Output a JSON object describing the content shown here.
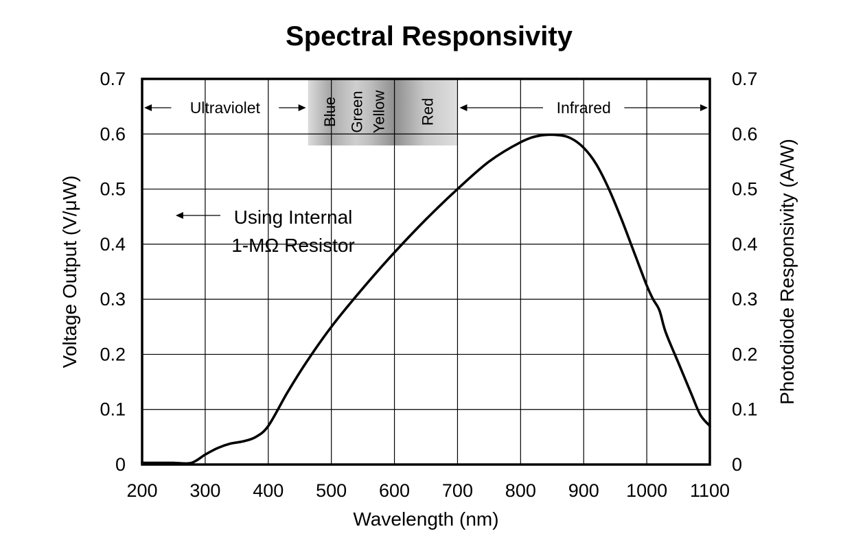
{
  "chart_data": {
    "type": "line",
    "title": "Spectral Responsivity",
    "xlabel": "Wavelength (nm)",
    "ylabel": "Voltage Output (V/μW)",
    "y2label": "Photodiode Responsivity (A/W)",
    "xlim": [
      200,
      1100
    ],
    "ylim": [
      0,
      0.7
    ],
    "y2lim": [
      0,
      0.7
    ],
    "grid": true,
    "x_ticks": [
      "200",
      "300",
      "400",
      "500",
      "600",
      "700",
      "800",
      "900",
      "1000",
      "1100"
    ],
    "y_ticks": [
      "0",
      "0.1",
      "0.2",
      "0.3",
      "0.4",
      "0.5",
      "0.6",
      "0.7"
    ],
    "y2_ticks": [
      "0",
      "0.1",
      "0.2",
      "0.3",
      "0.4",
      "0.5",
      "0.6",
      "0.7"
    ],
    "series": [
      {
        "x": [
          200,
          220,
          250,
          278,
          300,
          320,
          340,
          360,
          380,
          400,
          430,
          460,
          500,
          550,
          600,
          650,
          700,
          750,
          800,
          830,
          860,
          880,
          900,
          920,
          940,
          960,
          980,
          1000,
          1010,
          1020,
          1030,
          1050,
          1070,
          1085,
          1100
        ],
        "y": [
          0.003,
          0.003,
          0.003,
          0.003,
          0.018,
          0.03,
          0.038,
          0.042,
          0.05,
          0.07,
          0.13,
          0.185,
          0.25,
          0.32,
          0.385,
          0.445,
          0.5,
          0.55,
          0.585,
          0.597,
          0.598,
          0.592,
          0.575,
          0.545,
          0.5,
          0.445,
          0.385,
          0.325,
          0.3,
          0.28,
          0.24,
          0.185,
          0.13,
          0.09,
          0.07
        ]
      }
    ],
    "annotations": {
      "regions": [
        {
          "label": "Ultraviolet",
          "from": 200,
          "to": 463
        },
        {
          "label": "Infrared",
          "from": 700,
          "to": 1100
        }
      ],
      "visible_band": {
        "from": 463,
        "to": 700,
        "labels": [
          {
            "text": "Blue",
            "at": 497
          },
          {
            "text": "Green",
            "at": 540
          },
          {
            "text": "Yellow",
            "at": 575
          },
          {
            "text": "Red",
            "at": 652
          }
        ]
      },
      "note": {
        "lines": [
          "Using Internal",
          "1-MΩ Resistor"
        ],
        "arrow_from": 400,
        "arrow_to": 250,
        "at_y": 0.46
      }
    }
  }
}
